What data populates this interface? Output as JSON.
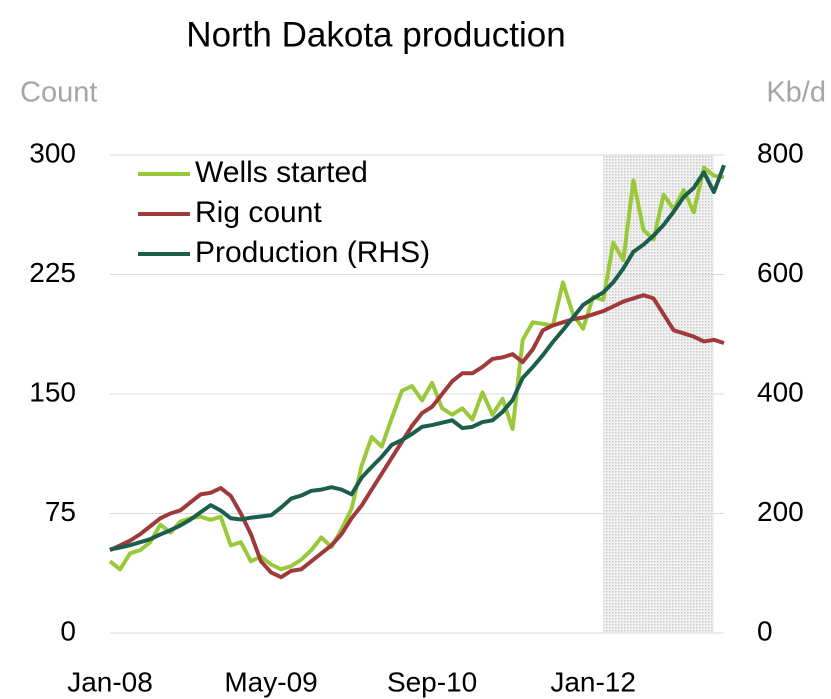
{
  "chart_data": {
    "type": "line",
    "title": "North Dakota production",
    "ylabel": "Count",
    "y2label": "Kb/d",
    "categories": [
      "Jan-08",
      null,
      null,
      null,
      null,
      null,
      null,
      null,
      null,
      null,
      null,
      null,
      null,
      null,
      null,
      null,
      "May-09",
      null,
      null,
      null,
      null,
      null,
      null,
      null,
      null,
      null,
      null,
      null,
      null,
      null,
      null,
      null,
      "Sep-10",
      null,
      null,
      null,
      null,
      null,
      null,
      null,
      null,
      null,
      null,
      null,
      null,
      null,
      null,
      null,
      "Jan-12",
      null,
      null,
      null,
      null,
      null,
      null,
      null,
      null,
      null,
      null,
      null,
      null,
      null
    ],
    "series": [
      {
        "name": "Wells started",
        "color": "#99c93a",
        "values": [
          45,
          40,
          50,
          52,
          57,
          68,
          63,
          70,
          72,
          73,
          71,
          73,
          55,
          57,
          45,
          48,
          43,
          40,
          42,
          46,
          52,
          60,
          54,
          65,
          78,
          105,
          123,
          117,
          135,
          152,
          155,
          146,
          157,
          141,
          137,
          141,
          134,
          151,
          137,
          147,
          128,
          184,
          195,
          194,
          193,
          220,
          200,
          191,
          211,
          209,
          245,
          234,
          284,
          253,
          247,
          275,
          266,
          278,
          264,
          292,
          287,
          286
        ]
      },
      {
        "name": "Rig count",
        "color": "#a0393a",
        "values": [
          52,
          55,
          58,
          62,
          67,
          72,
          75,
          77,
          82,
          87,
          88,
          91,
          86,
          75,
          62,
          45,
          38,
          35,
          39,
          40,
          45,
          50,
          55,
          62,
          72,
          80,
          90,
          100,
          110,
          120,
          130,
          138,
          142,
          150,
          158,
          163,
          163,
          167,
          172,
          173,
          175,
          170,
          178,
          190,
          193,
          195,
          197,
          198,
          200,
          202,
          205,
          208,
          210,
          212,
          210,
          200,
          190,
          188,
          186,
          183,
          184,
          182
        ]
      },
      {
        "name": "Production (RHS)",
        "color": "#1b5e4c",
        "axis": "y2",
        "values": [
          140,
          143,
          147,
          152,
          157,
          165,
          172,
          180,
          190,
          202,
          214,
          205,
          192,
          190,
          193,
          195,
          197,
          210,
          225,
          230,
          238,
          240,
          244,
          240,
          232,
          260,
          278,
          295,
          315,
          323,
          333,
          345,
          348,
          352,
          356,
          343,
          345,
          353,
          356,
          370,
          390,
          427,
          445,
          465,
          487,
          507,
          528,
          549,
          560,
          570,
          587,
          610,
          638,
          650,
          665,
          683,
          705,
          730,
          745,
          771,
          738,
          783
        ]
      }
    ],
    "ylim": [
      0,
      300
    ],
    "yticks": [
      0,
      75,
      150,
      225,
      300
    ],
    "y2lim": [
      0,
      800
    ],
    "y2ticks": [
      0,
      200,
      400,
      600,
      800
    ],
    "grid": true,
    "legend": "upper left",
    "shade": [
      49,
      60
    ]
  }
}
